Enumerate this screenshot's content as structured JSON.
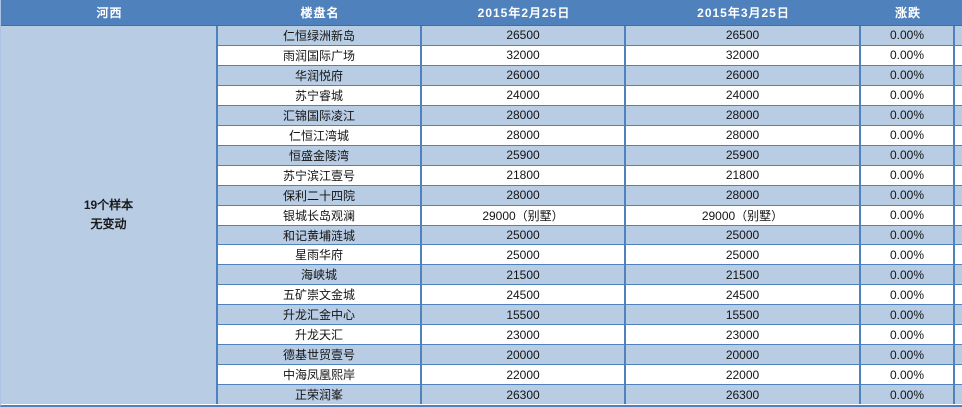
{
  "table": {
    "region_header": "河西",
    "columns": {
      "name": "楼盘名",
      "date1": "2015年2月25日",
      "date2": "2015年3月25日",
      "change": "涨跌"
    },
    "summary": {
      "line1": "19个样本",
      "line2": "无变动"
    },
    "rows": [
      {
        "name": "仁恒绿洲新岛",
        "feb": "26500",
        "mar": "26500",
        "change": "0.00%"
      },
      {
        "name": "雨润国际广场",
        "feb": "32000",
        "mar": "32000",
        "change": "0.00%"
      },
      {
        "name": "华润悦府",
        "feb": "26000",
        "mar": "26000",
        "change": "0.00%"
      },
      {
        "name": "苏宁睿城",
        "feb": "24000",
        "mar": "24000",
        "change": "0.00%"
      },
      {
        "name": "汇锦国际凌江",
        "feb": "28000",
        "mar": "28000",
        "change": "0.00%"
      },
      {
        "name": "仁恒江湾城",
        "feb": "28000",
        "mar": "28000",
        "change": "0.00%"
      },
      {
        "name": "恒盛金陵湾",
        "feb": "25900",
        "mar": "25900",
        "change": "0.00%"
      },
      {
        "name": "苏宁滨江壹号",
        "feb": "21800",
        "mar": "21800",
        "change": "0.00%"
      },
      {
        "name": "保利二十四院",
        "feb": "28000",
        "mar": "28000",
        "change": "0.00%"
      },
      {
        "name": "银城长岛观澜",
        "feb": "29000（别墅）",
        "mar": "29000（别墅）",
        "change": "0.00%"
      },
      {
        "name": "和记黄埔涟城",
        "feb": "25000",
        "mar": "25000",
        "change": "0.00%"
      },
      {
        "name": "星雨华府",
        "feb": "25000",
        "mar": "25000",
        "change": "0.00%"
      },
      {
        "name": "海峡城",
        "feb": "21500",
        "mar": "21500",
        "change": "0.00%"
      },
      {
        "name": "五矿崇文金城",
        "feb": "24500",
        "mar": "24500",
        "change": "0.00%"
      },
      {
        "name": "升龙汇金中心",
        "feb": "15500",
        "mar": "15500",
        "change": "0.00%"
      },
      {
        "name": "升龙天汇",
        "feb": "23000",
        "mar": "23000",
        "change": "0.00%"
      },
      {
        "name": "德基世贸壹号",
        "feb": "20000",
        "mar": "20000",
        "change": "0.00%"
      },
      {
        "name": "中海凤凰熙岸",
        "feb": "22000",
        "mar": "22000",
        "change": "0.00%"
      },
      {
        "name": "正荣润峯",
        "feb": "26300",
        "mar": "26300",
        "change": "0.00%"
      }
    ],
    "colors": {
      "header_bg": "#4f81bd",
      "band_bg": "#b8cce4",
      "border": "#4f81bd",
      "header_text": "#ffffff",
      "body_text": "#141414"
    }
  }
}
